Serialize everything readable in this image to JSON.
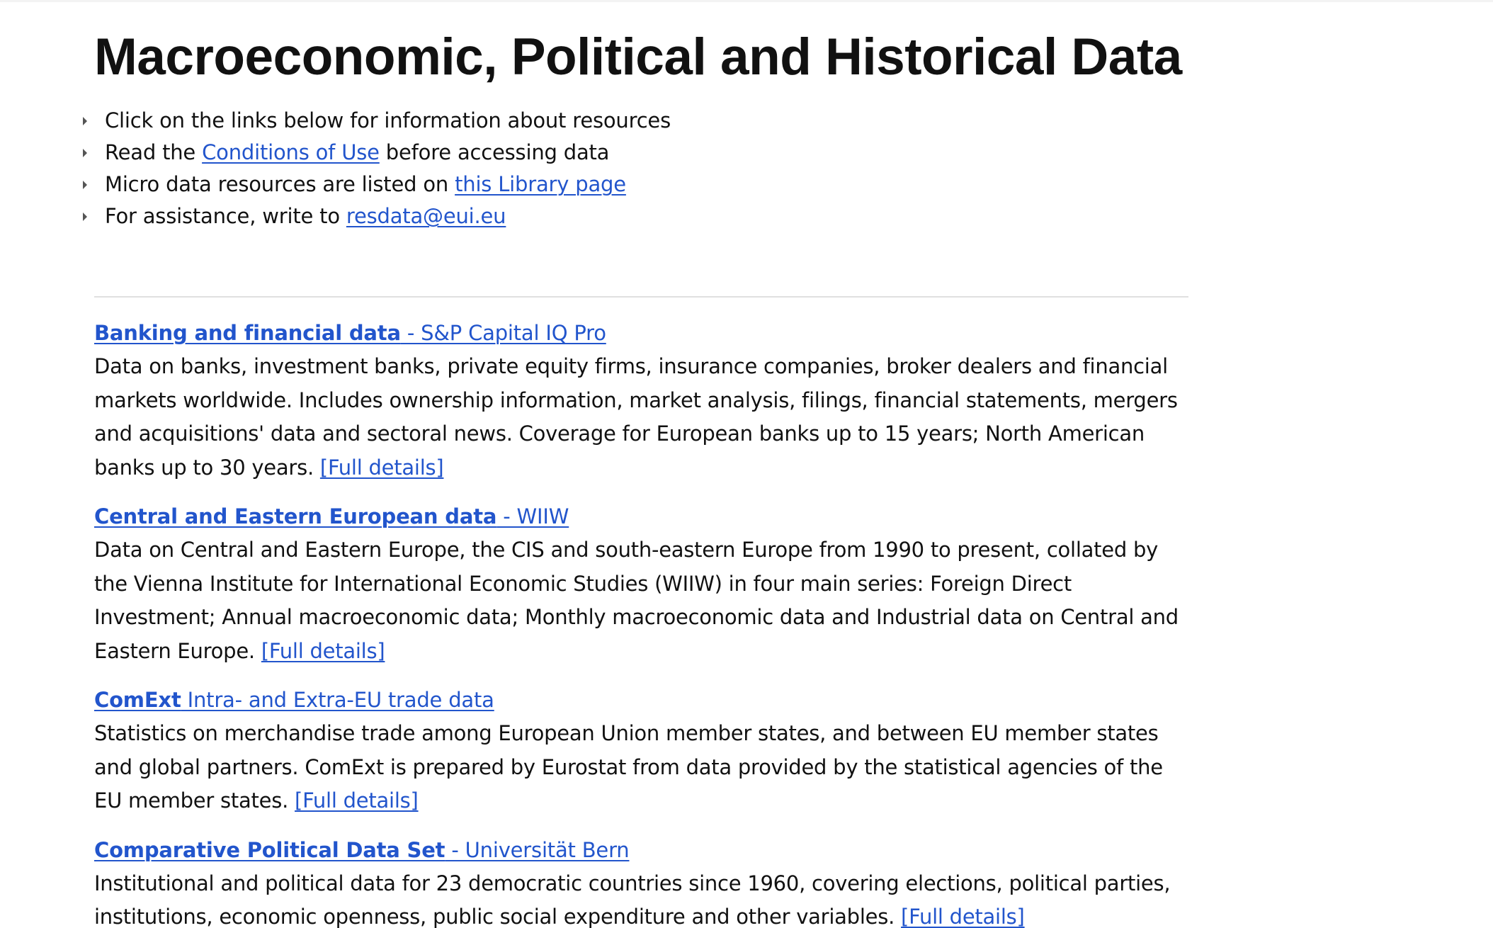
{
  "page": {
    "title": "Macroeconomic, Political and Historical Data"
  },
  "intro": {
    "item1": "Click on the links below for information about resources",
    "item2_before": "Read the ",
    "item2_link": "Conditions of Use",
    "item2_after": " before accessing data",
    "item3_before": "Micro data resources are listed on ",
    "item3_link": "this Library page",
    "item4_before": "For assistance, write to ",
    "item4_link": "resdata@eui.eu"
  },
  "resources": [
    {
      "name": "Banking and financial data",
      "provider": " - S&P Capital IQ Pro",
      "description": "Data on banks, investment banks, private equity firms, insurance companies, broker dealers and financial markets worldwide. Includes ownership information, market analysis, filings, financial statements, mergers and acquisitions' data and sectoral news. Coverage for European banks up to 15 years; North American banks up to 30 years. ",
      "details_link": "[Full details]"
    },
    {
      "name": "Central and Eastern European data",
      "provider": " - WIIW",
      "description": "Data on Central and Eastern Europe, the CIS and south-eastern Europe from 1990 to present, collated by the Vienna Institute for International Economic Studies (WIIW) in four main series: Foreign Direct Investment; Annual macroeconomic data; Monthly macroeconomic data and Industrial data on Central and Eastern Europe. ",
      "details_link": "[Full details]"
    },
    {
      "name": "ComExt",
      "provider": " Intra- and Extra-EU trade data",
      "description": "Statistics on merchandise trade among European Union member states, and between EU member states and global partners. ComExt is prepared by Eurostat from data provided by the statistical agencies of the EU member states. ",
      "details_link": "[Full details]"
    },
    {
      "name": "Comparative Political Data Set",
      "provider": " - Universität Bern",
      "description": "Institutional and political data for 23 democratic countries since 1960, covering elections, political parties, institutions, economic openness, public social expenditure and other variables. ",
      "details_link": "[Full details]"
    }
  ]
}
